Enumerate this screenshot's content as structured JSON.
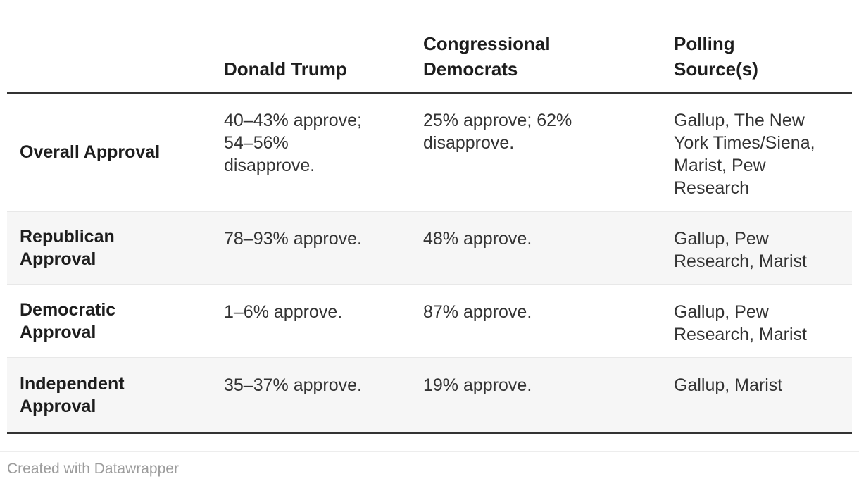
{
  "chart_data": {
    "type": "table",
    "columns": [
      "",
      "Donald Trump",
      "Congressional\nDemocrats",
      "Polling\nSource(s)"
    ],
    "rows": [
      {
        "label": "Overall Approval",
        "donald_trump": "40–43% approve;\n54–56%\ndisapprove.",
        "congressional_democrats": "25% approve; 62%\ndisapprove.",
        "polling_sources": "Gallup, The New\nYork Times/Siena,\nMarist, Pew\nResearch"
      },
      {
        "label": "Republican\nApproval",
        "donald_trump": "78–93% approve.",
        "congressional_democrats": "48% approve.",
        "polling_sources": "Gallup, Pew\nResearch, Marist"
      },
      {
        "label": "Democratic\nApproval",
        "donald_trump": "1–6% approve.",
        "congressional_democrats": "87% approve.",
        "polling_sources": "Gallup, Pew\nResearch, Marist"
      },
      {
        "label": "Independent\nApproval",
        "donald_trump": "35–37% approve.",
        "congressional_democrats": "19% approve.",
        "polling_sources": "Gallup, Marist"
      }
    ]
  },
  "footer": {
    "attribution": "Created with Datawrapper"
  },
  "colors": {
    "table_frame_border": "#333333",
    "row_divider": "#e8e8e8",
    "alt_row_background": "#f6f6f6",
    "header_text": "#1d1d1d",
    "body_text": "#333333",
    "footer_text": "#9c9c9c"
  }
}
